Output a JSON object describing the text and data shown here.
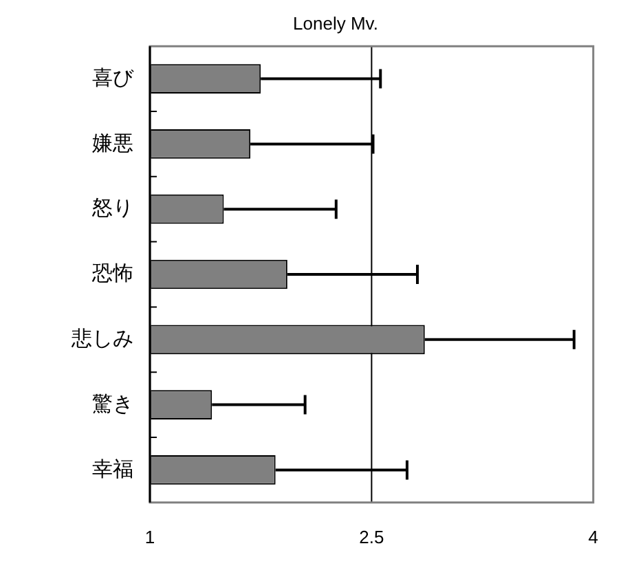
{
  "chart_data": {
    "type": "bar",
    "orientation": "horizontal",
    "title": "Lonely Mv.",
    "categories": [
      "喜び",
      "嫌悪",
      "怒り",
      "恐怖",
      "悲しみ",
      "驚き",
      "幸福"
    ],
    "values": [
      1.75,
      1.68,
      1.5,
      1.93,
      2.86,
      1.42,
      1.85
    ],
    "errors": [
      [
        1.75,
        2.56
      ],
      [
        1.68,
        2.51
      ],
      [
        1.5,
        2.26
      ],
      [
        1.93,
        2.81
      ],
      [
        2.86,
        3.87
      ],
      [
        1.42,
        2.05
      ],
      [
        1.85,
        2.74
      ]
    ],
    "color": "#808080",
    "xlim": [
      1,
      4
    ],
    "xticks": [
      1,
      2.5,
      4
    ],
    "ref_lines": [
      {
        "axis": "x",
        "value": 2.5,
        "color": "#000000"
      }
    ],
    "grid": false,
    "legend": false
  }
}
